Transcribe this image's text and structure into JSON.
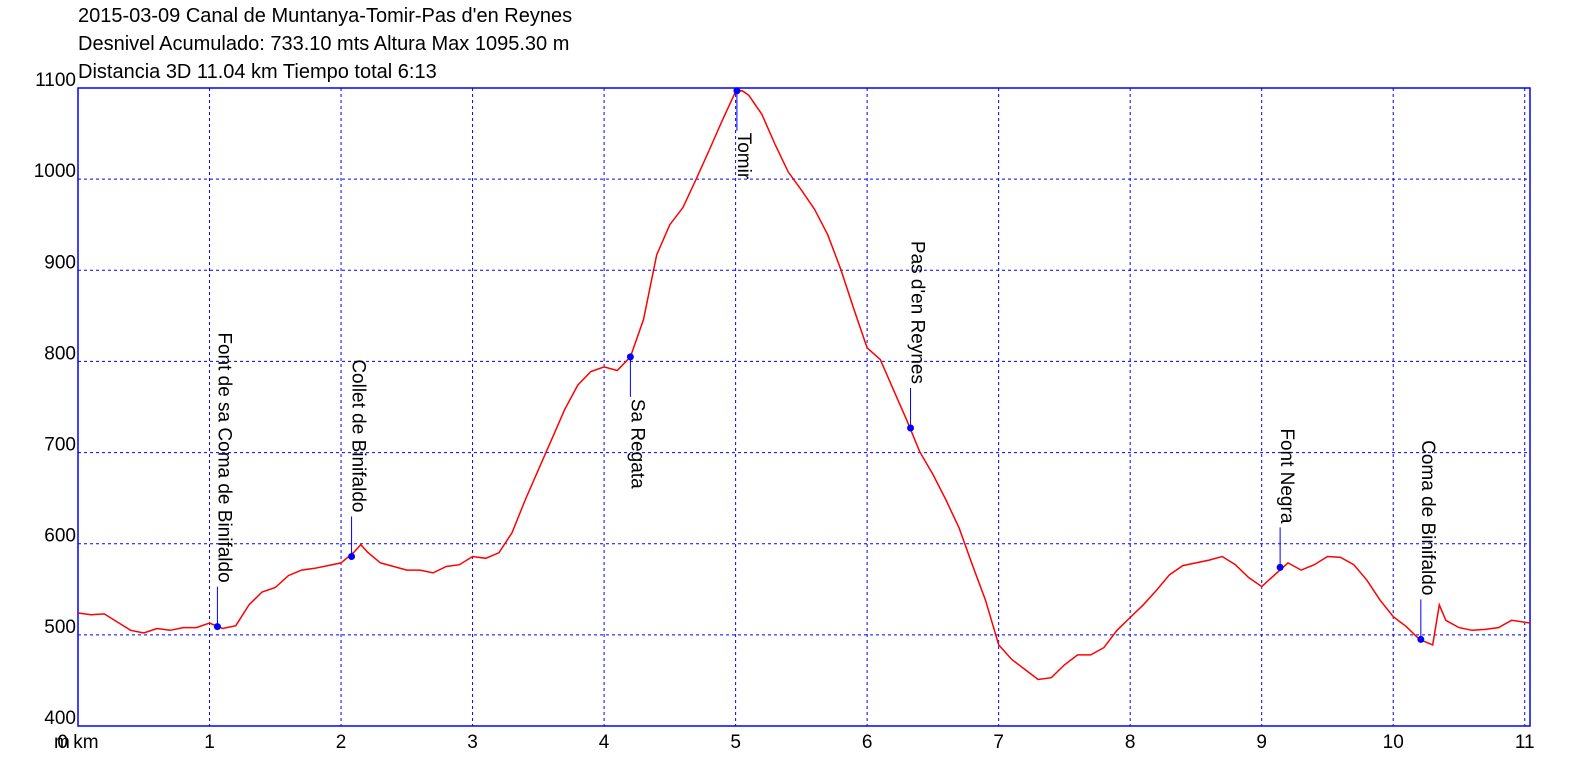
{
  "chart_data": {
    "type": "line",
    "title_lines": [
      "2015-03-09 Canal de Muntanya-Tomir-Pas d'en Reynes",
      "Desnivel Acumulado: 733.10 mts  Altura Max 1095.30 m",
      "Distancia 3D 11.04 km  Tiempo total 6:13"
    ],
    "y_unit": "m",
    "x": [
      0,
      0.1,
      0.2,
      0.3,
      0.4,
      0.5,
      0.6,
      0.7,
      0.8,
      0.9,
      1.0,
      1.1,
      1.2,
      1.3,
      1.4,
      1.5,
      1.6,
      1.7,
      1.8,
      1.9,
      2.0,
      2.1,
      2.15,
      2.2,
      2.3,
      2.4,
      2.5,
      2.6,
      2.7,
      2.8,
      2.9,
      3.0,
      3.1,
      3.2,
      3.3,
      3.4,
      3.5,
      3.6,
      3.7,
      3.8,
      3.9,
      4.0,
      4.1,
      4.2,
      4.3,
      4.4,
      4.5,
      4.6,
      4.7,
      4.8,
      4.9,
      5.0,
      5.05,
      5.1,
      5.2,
      5.3,
      5.4,
      5.5,
      5.6,
      5.7,
      5.8,
      5.9,
      6.0,
      6.1,
      6.2,
      6.3,
      6.4,
      6.5,
      6.6,
      6.7,
      6.8,
      6.9,
      7.0,
      7.1,
      7.2,
      7.3,
      7.4,
      7.5,
      7.6,
      7.7,
      7.8,
      7.9,
      8.0,
      8.1,
      8.2,
      8.3,
      8.4,
      8.5,
      8.6,
      8.7,
      8.8,
      8.9,
      9.0,
      9.1,
      9.2,
      9.3,
      9.4,
      9.5,
      9.6,
      9.7,
      9.8,
      9.9,
      10.0,
      10.1,
      10.2,
      10.3,
      10.35,
      10.4,
      10.5,
      10.6,
      10.7,
      10.8,
      10.9,
      11.04
    ],
    "series": [
      {
        "color": "#ff0000",
        "values": [
          524,
          522,
          523,
          514,
          505,
          502,
          507,
          505,
          508,
          508,
          513,
          507,
          510,
          533,
          547,
          552,
          565,
          571,
          573,
          576,
          579,
          591,
          599,
          591,
          579,
          575,
          571,
          571,
          568,
          575,
          577,
          586,
          584,
          590,
          612,
          648,
          681,
          714,
          747,
          774,
          789,
          794,
          790,
          805,
          846,
          917,
          950,
          969,
          1000,
          1032,
          1065,
          1096,
          1097,
          1092,
          1071,
          1038,
          1008,
          988,
          967,
          939,
          901,
          857,
          815,
          802,
          769,
          736,
          701,
          676,
          648,
          617,
          577,
          538,
          489,
          473,
          462,
          451,
          453,
          467,
          478,
          478,
          486,
          505,
          519,
          533,
          549,
          566,
          576,
          579,
          582,
          586,
          577,
          563,
          553,
          566,
          579,
          571,
          577,
          586,
          585,
          577,
          560,
          538,
          520,
          509,
          495,
          489,
          533,
          516,
          508,
          505,
          506,
          508,
          516,
          513
        ]
      }
    ],
    "waypoints": [
      {
        "name": "Font de sa Coma de Binifaldo",
        "x": 1.06,
        "y": 509,
        "label_position": "above"
      },
      {
        "name": "Collet de Binifaldo",
        "x": 2.08,
        "y": 586,
        "label_position": "above"
      },
      {
        "name": "Sa Regata",
        "x": 4.2,
        "y": 805,
        "label_position": "below"
      },
      {
        "name": "Tomir",
        "x": 5.01,
        "y": 1097,
        "label_position": "below"
      },
      {
        "name": "Pas d'en Reynes",
        "x": 6.33,
        "y": 727,
        "label_position": "above"
      },
      {
        "name": "Font Negra",
        "x": 9.14,
        "y": 574,
        "label_position": "above"
      },
      {
        "name": "Coma de Binifaldo",
        "x": 10.21,
        "y": 495,
        "label_position": "above"
      }
    ],
    "waypoint_color": "#0000ff",
    "grid_color": "#0000ff",
    "xlim": [
      0,
      11.04
    ],
    "ylim": [
      400,
      1100
    ],
    "xticks": [
      {
        "value": 0,
        "label": "0 km"
      },
      1,
      2,
      3,
      4,
      5,
      6,
      7,
      8,
      9,
      10,
      11
    ],
    "yticks": [
      400,
      500,
      600,
      700,
      800,
      900,
      1000,
      1100
    ],
    "grid": true
  }
}
